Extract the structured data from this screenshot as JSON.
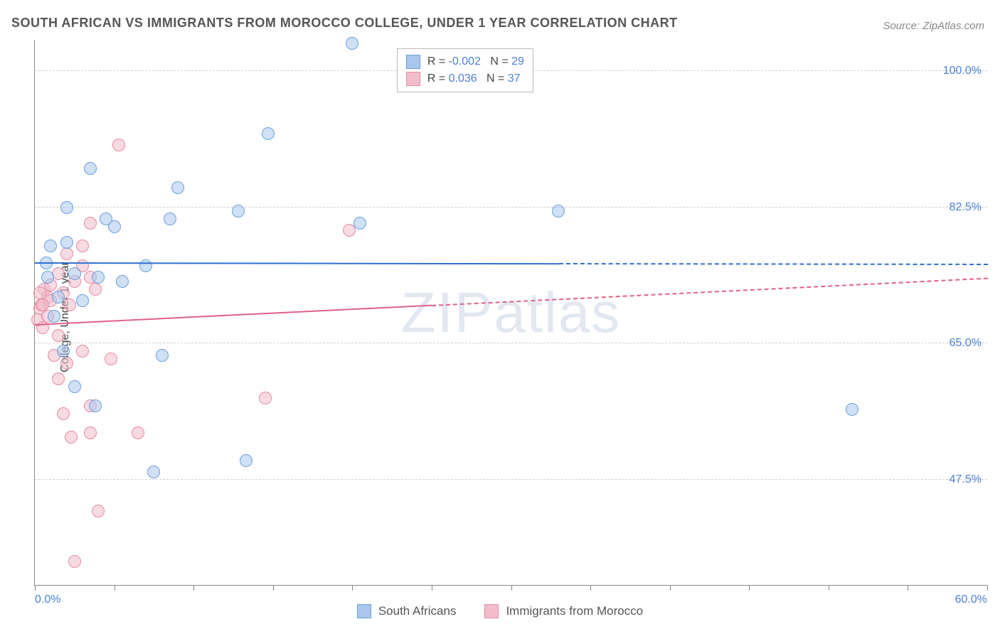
{
  "title": "SOUTH AFRICAN VS IMMIGRANTS FROM MOROCCO COLLEGE, UNDER 1 YEAR CORRELATION CHART",
  "source": "Source: ZipAtlas.com",
  "y_axis_label": "College, Under 1 year",
  "watermark": "ZIPatlas",
  "xlim": [
    0,
    60
  ],
  "ylim": [
    34,
    104
  ],
  "x_ticks": [
    0,
    5,
    10,
    15,
    20,
    25,
    30,
    35,
    40,
    45,
    50,
    55,
    60
  ],
  "x_tick_labels": {
    "0": "0.0%",
    "60": "60.0%"
  },
  "y_gridlines": [
    47.5,
    65.0,
    82.5,
    100.0
  ],
  "y_tick_labels": [
    "47.5%",
    "65.0%",
    "82.5%",
    "100.0%"
  ],
  "axis_label_color": "#4a7fd6",
  "grid_color": "#d0d0d0",
  "stats_legend": {
    "top_pct_from_top": 1.5,
    "left_pct": 38,
    "rows": [
      {
        "swatch_fill": "#a9c7ec",
        "swatch_border": "#6a9fe0",
        "r": "-0.002",
        "n": "29"
      },
      {
        "swatch_fill": "#f2bccb",
        "swatch_border": "#e58ba5",
        "r": "0.036",
        "n": "37"
      }
    ],
    "labels": {
      "r": "R =",
      "n": "N ="
    }
  },
  "bottom_legend": [
    {
      "label": "South Africans",
      "fill": "#a9c7ec",
      "border": "#6a9fe0"
    },
    {
      "label": "Immigrants from Morocco",
      "fill": "#f2bccb",
      "border": "#e58ba5"
    }
  ],
  "series": [
    {
      "name": "south-africans",
      "fill": "rgba(169,199,236,0.55)",
      "stroke": "#6a9fe0",
      "marker_size": 18,
      "line_color": "#2f6fd0",
      "line_width": 2.5,
      "line_x_span": [
        0,
        60
      ],
      "line_y": [
        75.5,
        75.3
      ],
      "line_dash_after_x": 33,
      "points": [
        [
          20.0,
          103.5
        ],
        [
          14.7,
          92.0
        ],
        [
          3.5,
          87.5
        ],
        [
          2.0,
          82.5
        ],
        [
          5.0,
          80.0
        ],
        [
          9.0,
          85.0
        ],
        [
          0.7,
          75.3
        ],
        [
          0.8,
          73.5
        ],
        [
          1.0,
          77.5
        ],
        [
          2.5,
          74.0
        ],
        [
          4.5,
          81.0
        ],
        [
          7.0,
          75.0
        ],
        [
          8.0,
          63.5
        ],
        [
          1.8,
          64.0
        ],
        [
          2.5,
          59.5
        ],
        [
          3.8,
          57.0
        ],
        [
          7.5,
          48.5
        ],
        [
          13.3,
          50.0
        ],
        [
          12.8,
          82.0
        ],
        [
          8.5,
          81.0
        ],
        [
          33.0,
          82.0
        ],
        [
          51.5,
          56.5
        ],
        [
          1.5,
          71.0
        ],
        [
          1.2,
          68.5
        ],
        [
          3.0,
          70.5
        ],
        [
          20.5,
          80.5
        ],
        [
          2.0,
          78.0
        ],
        [
          5.5,
          73.0
        ],
        [
          4.0,
          73.5
        ]
      ]
    },
    {
      "name": "immigrants-morocco",
      "fill": "rgba(242,188,203,0.55)",
      "stroke": "#e58ba5",
      "marker_size": 18,
      "line_color": "#e06088",
      "line_width": 2.5,
      "line_x_span": [
        0,
        60
      ],
      "line_y": [
        67.5,
        73.5
      ],
      "line_dash_after_x": 25,
      "points": [
        [
          5.3,
          90.5
        ],
        [
          19.8,
          79.5
        ],
        [
          3.5,
          80.5
        ],
        [
          2.0,
          76.5
        ],
        [
          3.0,
          77.5
        ],
        [
          1.5,
          74.0
        ],
        [
          3.5,
          73.5
        ],
        [
          0.6,
          72.0
        ],
        [
          0.8,
          71.0
        ],
        [
          0.4,
          70.0
        ],
        [
          0.3,
          69.5
        ],
        [
          1.0,
          70.5
        ],
        [
          1.8,
          71.5
        ],
        [
          2.5,
          73.0
        ],
        [
          0.2,
          68.0
        ],
        [
          0.5,
          67.0
        ],
        [
          0.8,
          68.5
        ],
        [
          1.5,
          66.0
        ],
        [
          1.2,
          63.5
        ],
        [
          2.0,
          62.5
        ],
        [
          3.0,
          64.0
        ],
        [
          4.8,
          63.0
        ],
        [
          1.5,
          60.5
        ],
        [
          3.5,
          57.0
        ],
        [
          14.5,
          58.0
        ],
        [
          1.8,
          56.0
        ],
        [
          3.5,
          53.5
        ],
        [
          6.5,
          53.5
        ],
        [
          2.3,
          53.0
        ],
        [
          4.0,
          43.5
        ],
        [
          2.5,
          37.0
        ],
        [
          0.3,
          71.5
        ],
        [
          0.5,
          70.0
        ],
        [
          1.0,
          72.5
        ],
        [
          2.2,
          70.0
        ],
        [
          3.8,
          72.0
        ],
        [
          3.0,
          75.0
        ]
      ]
    }
  ]
}
